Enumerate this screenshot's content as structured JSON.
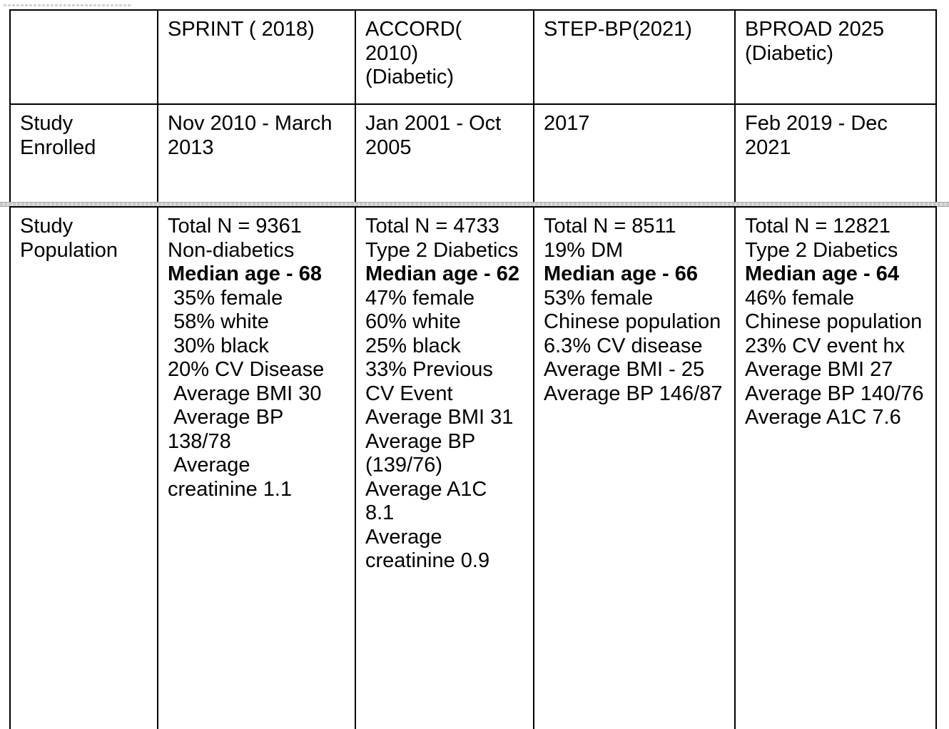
{
  "colors": {
    "table_border": "#000000",
    "page_break_band": "#c9c9c9",
    "text": "#000000"
  },
  "table": {
    "corner_label": "",
    "column_headers": [
      {
        "lines": [
          {
            "text": "SPRINT ( 2018)"
          }
        ]
      },
      {
        "lines": [
          {
            "text": "ACCORD("
          },
          {
            "text": "2010)"
          },
          {
            "text": "(Diabetic)"
          }
        ]
      },
      {
        "lines": [
          {
            "text": "STEP-BP(2021)"
          }
        ]
      },
      {
        "lines": [
          {
            "text": "BPROAD 2025"
          },
          {
            "text": "(Diabetic)"
          }
        ]
      }
    ],
    "rows": [
      {
        "label": {
          "lines": [
            {
              "text": "Study"
            },
            {
              "text": "Enrolled"
            }
          ]
        },
        "cells": [
          {
            "lines": [
              {
                "text": "Nov 2010 - March"
              },
              {
                "text": "2013"
              }
            ]
          },
          {
            "lines": [
              {
                "text": "Jan 2001 - Oct"
              },
              {
                "text": "2005"
              }
            ]
          },
          {
            "lines": [
              {
                "text": "2017"
              }
            ]
          },
          {
            "lines": [
              {
                "text": "Feb 2019 - Dec"
              },
              {
                "text": "2021"
              }
            ]
          }
        ]
      },
      {
        "label": {
          "lines": [
            {
              "text": "Study"
            },
            {
              "text": "Population"
            }
          ]
        },
        "cells": [
          {
            "lines": [
              {
                "text": "Total N = 9361"
              },
              {
                "text": "Non-diabetics"
              },
              {
                "text": "Median age - 68",
                "bold": true
              },
              {
                "text": " 35% female"
              },
              {
                "text": " 58% white"
              },
              {
                "text": " 30% black"
              },
              {
                "text": "20% CV Disease"
              },
              {
                "text": " Average BMI 30"
              },
              {
                "text": " Average BP"
              },
              {
                "text": "138/78"
              },
              {
                "text": " Average"
              },
              {
                "text": "creatinine 1.1"
              }
            ]
          },
          {
            "lines": [
              {
                "text": "Total N = 4733"
              },
              {
                "text": "Type 2 Diabetics"
              },
              {
                "text": "Median age - 62",
                "bold": true
              },
              {
                "text": "47% female"
              },
              {
                "text": "60% white"
              },
              {
                "text": "25% black"
              },
              {
                "text": "33% Previous"
              },
              {
                "text": "CV Event"
              },
              {
                "text": "Average BMI 31"
              },
              {
                "text": "Average BP"
              },
              {
                "text": "(139/76)"
              },
              {
                "text": "Average A1C"
              },
              {
                "text": "8.1"
              },
              {
                "text": "Average"
              },
              {
                "text": "creatinine 0.9"
              }
            ]
          },
          {
            "lines": [
              {
                "text": "Total N = 8511"
              },
              {
                "text": "19% DM"
              },
              {
                "text": "Median age - 66",
                "bold": true
              },
              {
                "text": "53% female"
              },
              {
                "text": "Chinese population"
              },
              {
                "text": "6.3% CV disease"
              },
              {
                "text": "Average BMI - 25"
              },
              {
                "text": "Average BP 146/87"
              }
            ]
          },
          {
            "lines": [
              {
                "text": "Total N = 12821"
              },
              {
                "text": "Type 2 Diabetics"
              },
              {
                "text": "Median age - 64",
                "bold": true
              },
              {
                "text": "46% female"
              },
              {
                "text": "Chinese population"
              },
              {
                "text": "23% CV event hx"
              },
              {
                "text": "Average BMI 27"
              },
              {
                "text": "Average BP 140/76"
              },
              {
                "text": "Average A1C 7.6"
              }
            ]
          }
        ]
      }
    ]
  }
}
